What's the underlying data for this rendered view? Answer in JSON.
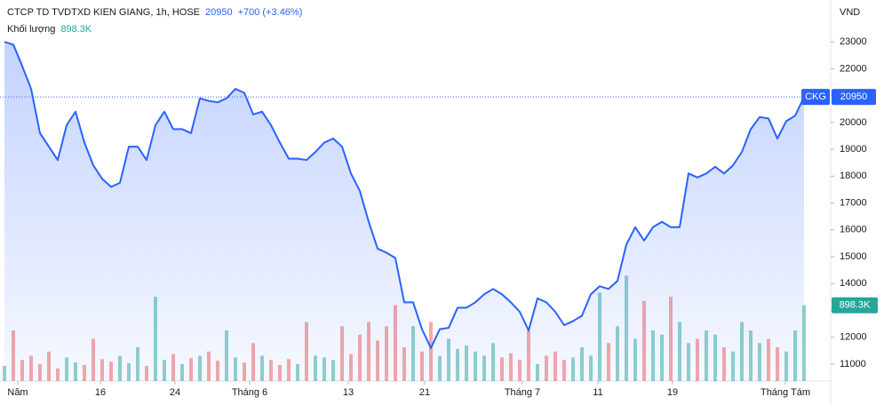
{
  "chart_data": {
    "type": "line",
    "title": "CTCP TD TVDTXD KIEN GIANG, 1h, HOSE",
    "symbol": "CKG",
    "change": "+700 (+3.46%)",
    "currency": "VND",
    "color": "#2962ff",
    "values": [
      23000,
      22900,
      22100,
      21250,
      19600,
      19100,
      18600,
      19900,
      20400,
      19250,
      18400,
      17900,
      17600,
      17750,
      19100,
      19100,
      18600,
      19900,
      20400,
      19750,
      19750,
      19600,
      20900,
      20800,
      20750,
      20900,
      21250,
      21100,
      20300,
      20400,
      19900,
      19250,
      18650,
      18650,
      18600,
      18900,
      19250,
      19400,
      19100,
      18100,
      17450,
      16300,
      15300,
      15150,
      14950,
      13300,
      13300,
      12300,
      11600,
      12300,
      12350,
      13100,
      13100,
      13300,
      13600,
      13800,
      13600,
      13300,
      12950,
      12250,
      13450,
      13300,
      12950,
      12450,
      12600,
      12800,
      13600,
      13900,
      13800,
      14100,
      15450,
      16100,
      15600,
      16100,
      16300,
      16100,
      16100,
      18100,
      17950,
      18100,
      18350,
      18100,
      18400,
      18900,
      19750,
      20200,
      20150,
      19400,
      20050,
      20250,
      20950
    ],
    "ylim": [
      10370,
      24560
    ],
    "yticks": [
      11000,
      12000,
      13000,
      14000,
      15000,
      16000,
      17000,
      18000,
      19000,
      20000,
      21000,
      22000,
      23000
    ],
    "xticks": [
      {
        "value": 1.5,
        "label": "Năm"
      },
      {
        "value": 10.8,
        "label": "16"
      },
      {
        "value": 19.2,
        "label": "24"
      },
      {
        "value": 27.6,
        "label": "Tháng 6"
      },
      {
        "value": 38.7,
        "label": "13"
      },
      {
        "value": 47.3,
        "label": "21"
      },
      {
        "value": 58.3,
        "label": "Tháng 7"
      },
      {
        "value": 66.8,
        "label": "11"
      },
      {
        "value": 75.2,
        "label": "19"
      },
      {
        "value": 87.9,
        "label": "Tháng Tám"
      }
    ],
    "grid": false,
    "volume": {
      "name": "Khối lượng",
      "latest_label": "898.3K",
      "up_color": "#26a69a",
      "down_color": "#ef5350",
      "ylim": [
        0,
        4520000
      ],
      "values": [
        180000,
        600000,
        250000,
        300000,
        200000,
        350000,
        150000,
        280000,
        220000,
        190000,
        500000,
        260000,
        230000,
        300000,
        210000,
        400000,
        180000,
        1000000,
        250000,
        320000,
        200000,
        270000,
        300000,
        350000,
        240000,
        600000,
        280000,
        220000,
        450000,
        300000,
        250000,
        190000,
        260000,
        200000,
        700000,
        300000,
        280000,
        250000,
        650000,
        320000,
        550000,
        700000,
        480000,
        650000,
        900000,
        400000,
        650000,
        350000,
        700000,
        300000,
        500000,
        380000,
        420000,
        350000,
        300000,
        450000,
        280000,
        330000,
        250000,
        600000,
        200000,
        300000,
        350000,
        250000,
        280000,
        400000,
        300000,
        1050000,
        450000,
        650000,
        1250000,
        500000,
        950000,
        600000,
        550000,
        1000000,
        700000,
        450000,
        500000,
        600000,
        550000,
        400000,
        350000,
        700000,
        600000,
        450000,
        500000,
        400000,
        350000,
        600000,
        898300
      ]
    }
  }
}
